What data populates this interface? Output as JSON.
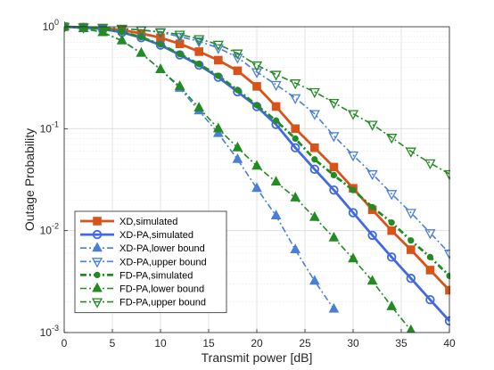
{
  "chart_data": {
    "type": "line",
    "title": "",
    "xlabel": "Transmit power [dB]",
    "ylabel": "Outage Probability",
    "xlim": [
      0,
      40
    ],
    "ylim": [
      0.001,
      1
    ],
    "yscale": "log",
    "grid": true,
    "legend_position": "bottom-left",
    "x_ticks": [
      "0",
      "5",
      "10",
      "15",
      "20",
      "25",
      "30",
      "35",
      "40"
    ],
    "y_ticks": [
      {
        "base": "10",
        "exp": "0",
        "value": 1
      },
      {
        "base": "10",
        "exp": "-1",
        "value": 0.1
      },
      {
        "base": "10",
        "exp": "-2",
        "value": 0.01
      },
      {
        "base": "10",
        "exp": "-3",
        "value": 0.001
      }
    ],
    "series": [
      {
        "name": "XD,simulated",
        "color": "#D95319",
        "dash": "solid",
        "marker": "square",
        "width": 2.8,
        "x": [
          0,
          2,
          4,
          6,
          8,
          10,
          12,
          14,
          16,
          18,
          20,
          22,
          24,
          26,
          28,
          30,
          32,
          34,
          36,
          38,
          40
        ],
        "y": [
          1,
          0.99,
          0.97,
          0.93,
          0.86,
          0.78,
          0.68,
          0.57,
          0.47,
          0.37,
          0.26,
          0.165,
          0.1,
          0.065,
          0.042,
          0.026,
          0.016,
          0.01,
          0.0065,
          0.0041,
          0.0026
        ]
      },
      {
        "name": "XD-PA,simulated",
        "color": "#4169E1",
        "dash": "solid",
        "marker": "circle",
        "width": 2.8,
        "x": [
          0,
          2,
          4,
          6,
          8,
          10,
          12,
          14,
          16,
          18,
          20,
          22,
          24,
          26,
          28,
          30,
          32,
          34,
          36,
          38,
          40
        ],
        "y": [
          1,
          0.98,
          0.95,
          0.88,
          0.78,
          0.66,
          0.53,
          0.42,
          0.32,
          0.23,
          0.165,
          0.11,
          0.065,
          0.04,
          0.025,
          0.015,
          0.009,
          0.0055,
          0.0034,
          0.0021,
          0.0013
        ]
      },
      {
        "name": "XD-PA,lower bound",
        "color": "#4A7FD8",
        "dash": "dashdot",
        "marker": "triangle-up",
        "width": 1.6,
        "x": [
          0,
          2,
          4,
          6,
          8,
          10,
          12,
          14,
          16,
          18,
          20,
          22,
          24,
          26,
          28
        ],
        "y": [
          1,
          0.96,
          0.88,
          0.73,
          0.55,
          0.38,
          0.25,
          0.15,
          0.09,
          0.05,
          0.026,
          0.014,
          0.0065,
          0.0032,
          0.0017
        ]
      },
      {
        "name": "XD-PA,upper bound",
        "color": "#4A7FD8",
        "dash": "dashdot",
        "marker": "triangle-down",
        "width": 1.6,
        "x": [
          0,
          2,
          4,
          6,
          8,
          10,
          12,
          14,
          16,
          18,
          20,
          22,
          24,
          26,
          28,
          30,
          32,
          34,
          36,
          38,
          40
        ],
        "y": [
          1,
          0.99,
          0.98,
          0.96,
          0.93,
          0.88,
          0.8,
          0.72,
          0.62,
          0.5,
          0.36,
          0.27,
          0.2,
          0.14,
          0.085,
          0.055,
          0.036,
          0.023,
          0.015,
          0.0095,
          0.006
        ]
      },
      {
        "name": "FD-PA,simulated",
        "color": "#228B22",
        "dash": "dashdot",
        "marker": "dot",
        "width": 2.8,
        "x": [
          0,
          2,
          4,
          6,
          8,
          10,
          12,
          14,
          16,
          18,
          20,
          22,
          24,
          26,
          28,
          30,
          32,
          34,
          36,
          38,
          40
        ],
        "y": [
          1,
          0.98,
          0.95,
          0.89,
          0.79,
          0.67,
          0.54,
          0.43,
          0.33,
          0.24,
          0.17,
          0.12,
          0.08,
          0.05,
          0.035,
          0.025,
          0.017,
          0.012,
          0.008,
          0.0055,
          0.0036
        ]
      },
      {
        "name": "FD-PA,lower bound",
        "color": "#228B22",
        "dash": "dashdot",
        "marker": "triangle-up",
        "width": 1.6,
        "x": [
          0,
          2,
          4,
          6,
          8,
          10,
          12,
          14,
          16,
          18,
          20,
          22,
          24,
          26,
          28,
          30,
          32,
          34,
          36
        ],
        "y": [
          1,
          0.96,
          0.88,
          0.73,
          0.55,
          0.38,
          0.26,
          0.16,
          0.1,
          0.065,
          0.043,
          0.03,
          0.021,
          0.0135,
          0.0085,
          0.0053,
          0.0032,
          0.0018,
          0.00105
        ]
      },
      {
        "name": "FD-PA,upper bound",
        "color": "#228B22",
        "dash": "dashdot",
        "marker": "triangle-down",
        "width": 1.6,
        "x": [
          0,
          2,
          4,
          6,
          8,
          10,
          12,
          14,
          16,
          18,
          20,
          22,
          24,
          26,
          28,
          30,
          32,
          34,
          36,
          38,
          40
        ],
        "y": [
          1,
          0.99,
          0.98,
          0.96,
          0.93,
          0.89,
          0.84,
          0.76,
          0.67,
          0.55,
          0.42,
          0.34,
          0.28,
          0.23,
          0.18,
          0.14,
          0.11,
          0.082,
          0.06,
          0.046,
          0.036
        ]
      }
    ]
  }
}
